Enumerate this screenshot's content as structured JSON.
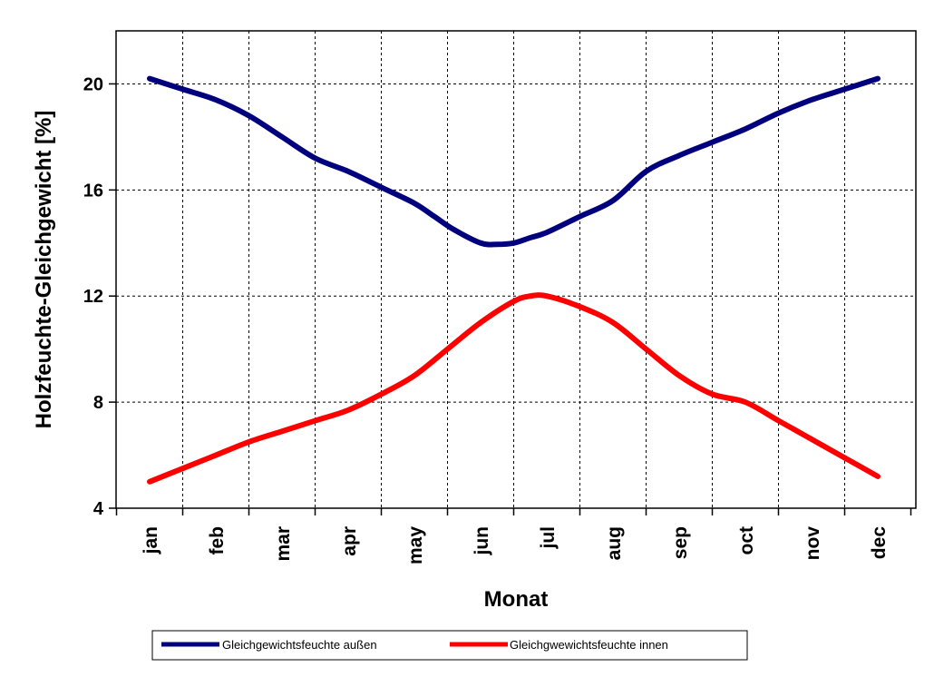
{
  "chart_data": {
    "type": "line",
    "title": "",
    "xlabel": "Monat",
    "ylabel": "Holzfeuchte-Gleichgewicht [%]",
    "categories": [
      "jan",
      "feb",
      "mar",
      "apr",
      "may",
      "jun",
      "jul",
      "aug",
      "sep",
      "oct",
      "nov",
      "dec"
    ],
    "ylim": [
      4,
      22
    ],
    "yticks": [
      "4",
      "8",
      "12",
      "16",
      "20"
    ],
    "grid": true,
    "legend_position": "bottom",
    "series": [
      {
        "name": "Gleichgewichtsfeuchte außen",
        "color": "#00007f",
        "x": [
          0,
          0.5,
          1,
          1.5,
          2,
          2.5,
          3,
          3.5,
          4,
          4.3,
          4.6,
          5,
          5.25,
          5.5,
          5.75,
          6,
          6.5,
          7,
          7.5,
          8,
          8.5,
          9,
          9.5,
          10,
          10.5,
          11
        ],
        "y": [
          20.2,
          19.8,
          19.4,
          18.8,
          18.0,
          17.2,
          16.7,
          16.1,
          15.5,
          15.0,
          14.5,
          14.0,
          13.95,
          14.0,
          14.2,
          14.4,
          15.0,
          15.6,
          16.7,
          17.3,
          17.8,
          18.3,
          18.9,
          19.4,
          19.8,
          20.2
        ]
      },
      {
        "name": "Gleichgwewichtsfeuchte innen",
        "color": "#ff0000",
        "x": [
          0,
          0.5,
          1,
          1.5,
          2,
          2.5,
          3,
          3.5,
          4,
          4.5,
          5,
          5.5,
          5.75,
          6,
          6.5,
          7,
          7.5,
          8,
          8.5,
          9,
          9.5,
          10,
          10.5,
          11
        ],
        "y": [
          5.0,
          5.5,
          6.0,
          6.5,
          6.9,
          7.3,
          7.7,
          8.3,
          9.0,
          10.0,
          11.0,
          11.8,
          12.0,
          12.0,
          11.6,
          11.0,
          10.0,
          9.0,
          8.3,
          8.0,
          7.3,
          6.6,
          5.9,
          5.2
        ]
      }
    ]
  }
}
